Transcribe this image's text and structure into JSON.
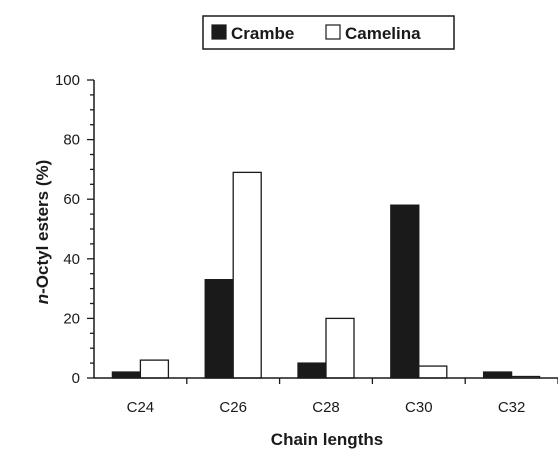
{
  "chart_data": {
    "type": "bar",
    "title": "",
    "xlabel": "Chain lengths",
    "ylabel_italic": "n",
    "ylabel_rest": "-Octyl esters (%)",
    "categories": [
      "C24",
      "C26",
      "C28",
      "C30",
      "C32"
    ],
    "series": [
      {
        "name": "Crambe",
        "values": [
          2,
          33,
          5,
          58,
          2
        ],
        "color": "#1a1a1a"
      },
      {
        "name": "Camelina",
        "values": [
          6,
          69,
          20,
          4,
          0.5
        ],
        "color": "#ffffff"
      }
    ],
    "ylim": [
      0,
      100
    ],
    "yticks": [
      "0",
      "20",
      "40",
      "60",
      "80",
      "100"
    ],
    "legend_position": "top-center",
    "grid": false
  }
}
